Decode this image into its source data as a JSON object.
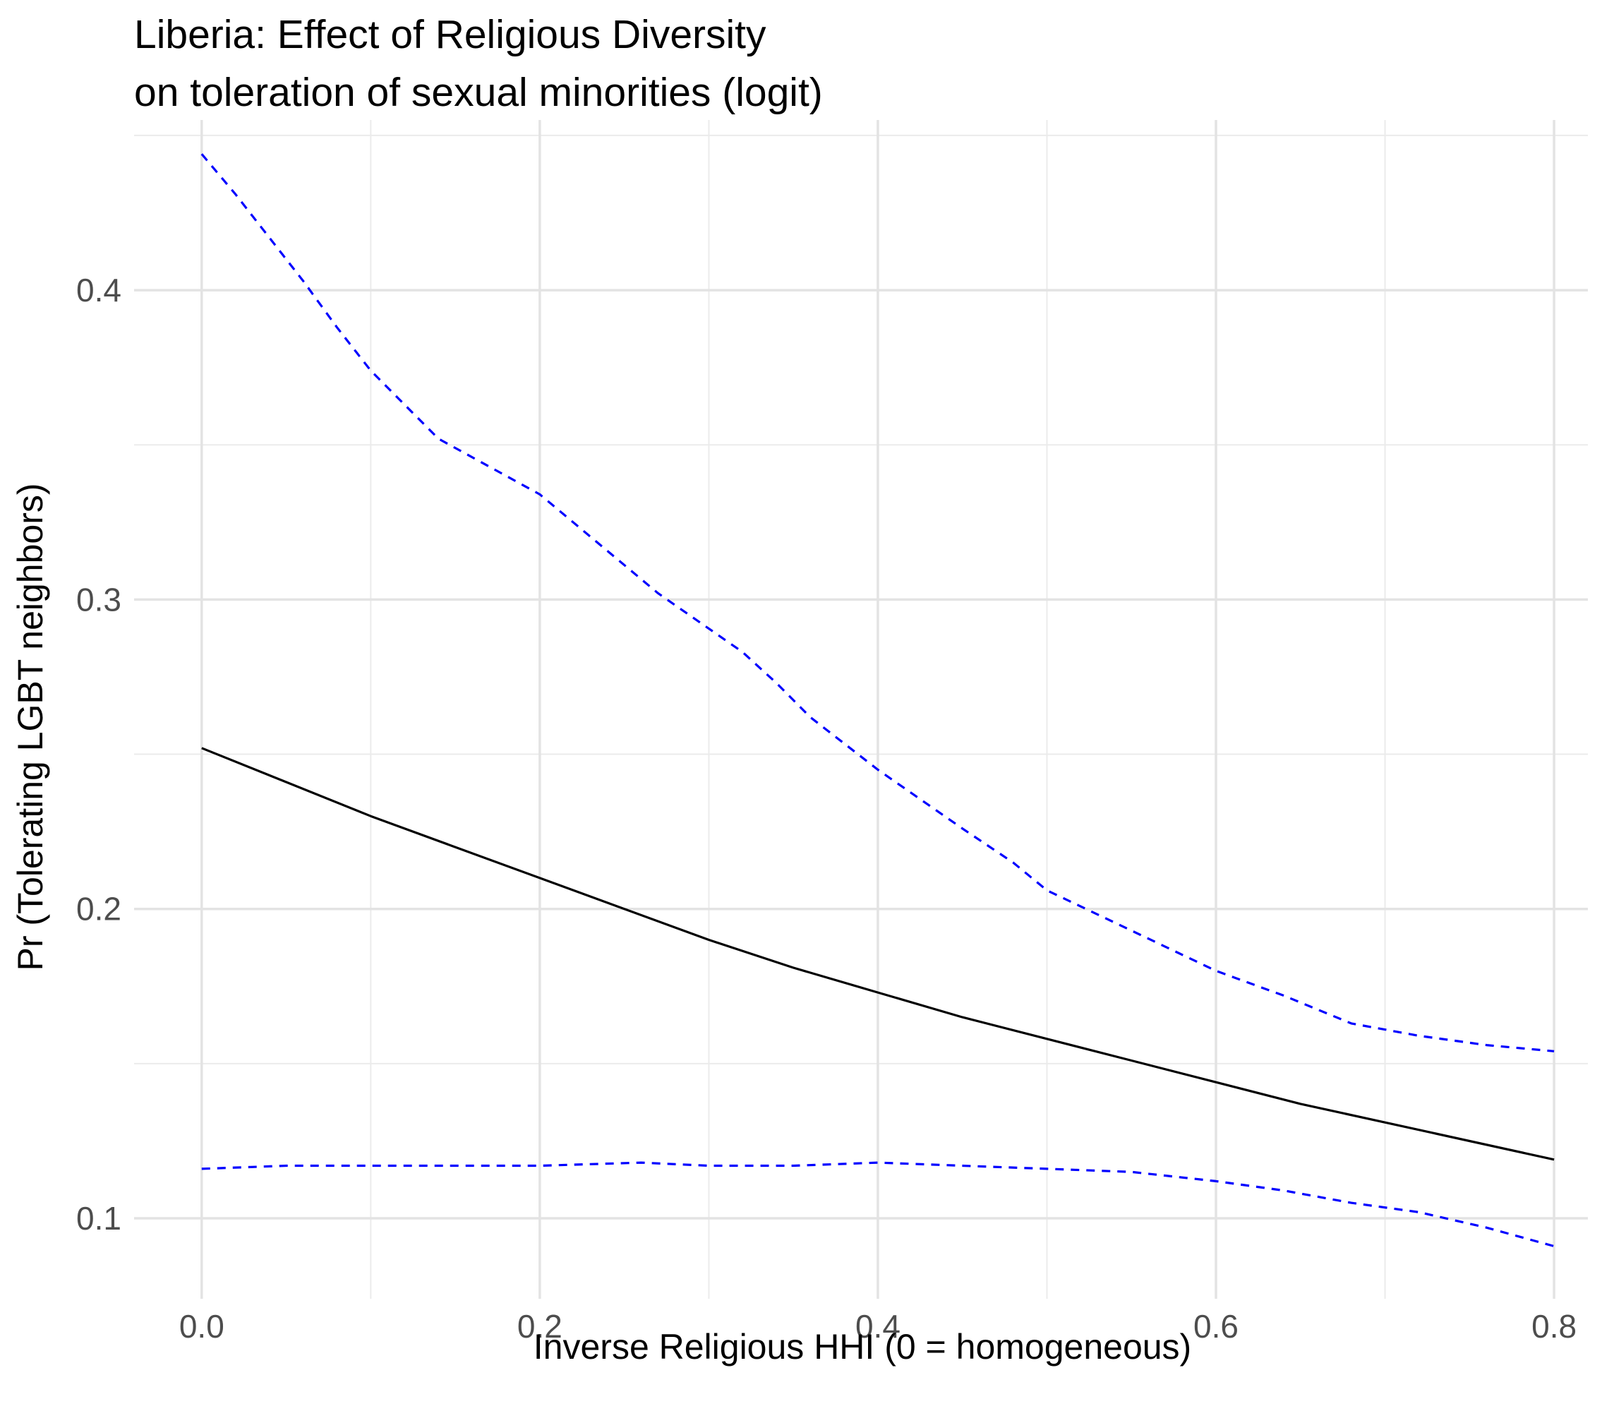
{
  "chart_data": {
    "type": "line",
    "title": "Liberia: Effect of Religious Diversity",
    "subtitle": "on toleration of sexual minorities (logit)",
    "xlabel": "Inverse Religious HHI (0 = homogeneous)",
    "ylabel": "Pr (Tolerating LGBT neighbors)",
    "xlim": [
      -0.04,
      0.82
    ],
    "ylim": [
      0.074,
      0.455
    ],
    "x_ticks": [
      0.0,
      0.2,
      0.4,
      0.6,
      0.8
    ],
    "x_tick_labels": [
      "0.0",
      "0.2",
      "0.4",
      "0.6",
      "0.8"
    ],
    "y_ticks": [
      0.1,
      0.2,
      0.3,
      0.4
    ],
    "y_tick_labels": [
      "0.1",
      "0.2",
      "0.3",
      "0.4"
    ],
    "grid": true,
    "legend": "none",
    "series": [
      {
        "line_style": "solid",
        "color": "#000000",
        "x": [
          0.0,
          0.05,
          0.1,
          0.15,
          0.2,
          0.25,
          0.3,
          0.35,
          0.4,
          0.45,
          0.5,
          0.55,
          0.6,
          0.65,
          0.7,
          0.75,
          0.8
        ],
        "values": [
          0.252,
          0.241,
          0.23,
          0.22,
          0.21,
          0.2,
          0.19,
          0.181,
          0.173,
          0.165,
          0.158,
          0.151,
          0.144,
          0.137,
          0.131,
          0.125,
          0.119
        ]
      },
      {
        "line_style": "dashed",
        "color": "#0000FF",
        "x": [
          0.0,
          0.02,
          0.04,
          0.06,
          0.08,
          0.1,
          0.14,
          0.2,
          0.27,
          0.32,
          0.34,
          0.36,
          0.4,
          0.45,
          0.48,
          0.5,
          0.55,
          0.6,
          0.64,
          0.68,
          0.72,
          0.76,
          0.8
        ],
        "values": [
          0.444,
          0.431,
          0.417,
          0.403,
          0.388,
          0.374,
          0.352,
          0.334,
          0.302,
          0.283,
          0.273,
          0.262,
          0.245,
          0.226,
          0.215,
          0.206,
          0.193,
          0.18,
          0.172,
          0.163,
          0.159,
          0.156,
          0.154
        ]
      },
      {
        "line_style": "dashed",
        "color": "#0000FF",
        "x": [
          0.0,
          0.05,
          0.1,
          0.15,
          0.2,
          0.26,
          0.3,
          0.35,
          0.4,
          0.45,
          0.5,
          0.55,
          0.6,
          0.64,
          0.68,
          0.72,
          0.76,
          0.8
        ],
        "values": [
          0.116,
          0.117,
          0.117,
          0.117,
          0.117,
          0.118,
          0.117,
          0.117,
          0.118,
          0.117,
          0.116,
          0.115,
          0.112,
          0.109,
          0.105,
          0.102,
          0.097,
          0.091
        ]
      }
    ]
  }
}
